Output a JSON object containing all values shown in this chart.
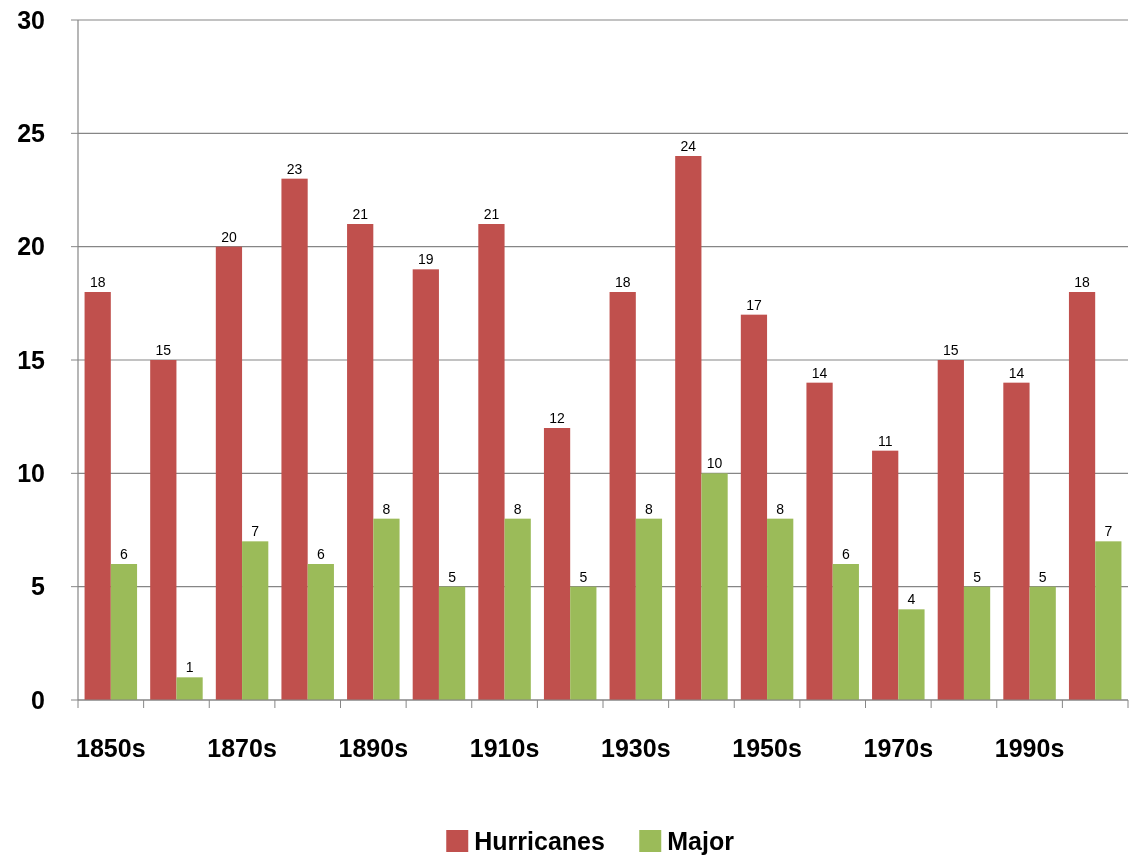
{
  "chart_data": {
    "type": "bar",
    "categories": [
      "1850s",
      null,
      "1870s",
      null,
      "1890s",
      null,
      "1910s",
      null,
      "1930s",
      null,
      "1950s",
      null,
      "1970s",
      null,
      "1990s",
      null
    ],
    "series": [
      {
        "name": "Hurricanes",
        "color": "#c0504d",
        "values": [
          18,
          15,
          20,
          23,
          21,
          19,
          21,
          12,
          18,
          24,
          17,
          14,
          11,
          15,
          14,
          18
        ]
      },
      {
        "name": "Major",
        "color": "#9bbb59",
        "values": [
          6,
          1,
          7,
          6,
          8,
          5,
          8,
          5,
          8,
          10,
          8,
          6,
          4,
          5,
          5,
          7
        ]
      }
    ],
    "ylim": [
      0,
      30
    ],
    "yticks": [
      0,
      5,
      10,
      15,
      20,
      25,
      30
    ],
    "grid": "y",
    "legend": "bottom",
    "data_labels": true
  }
}
